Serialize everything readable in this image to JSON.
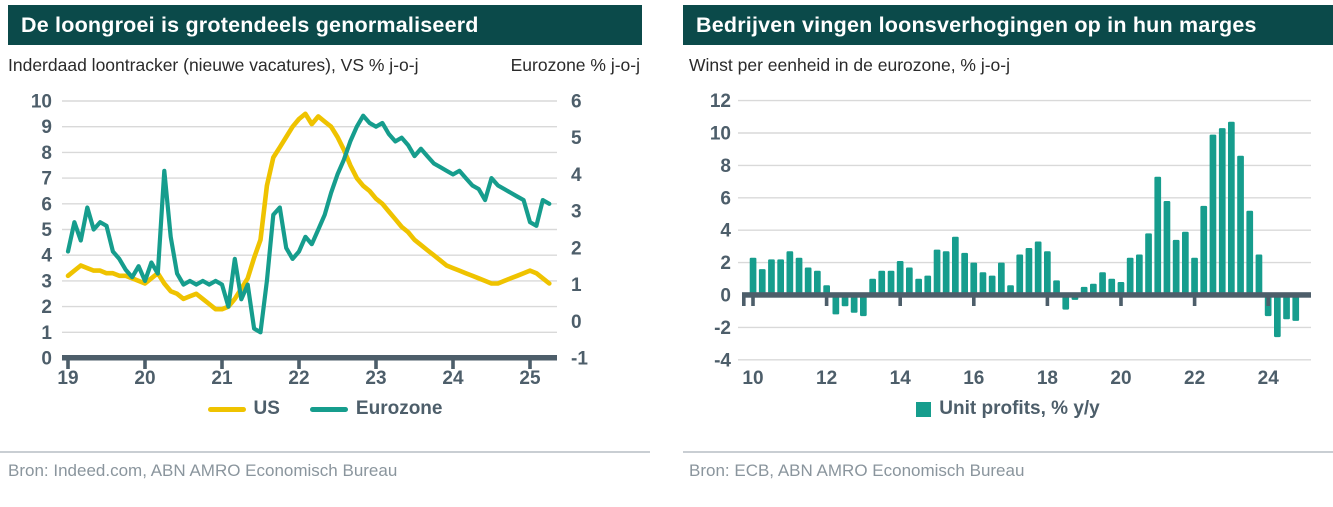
{
  "left": {
    "title": "De loongroei is grotendeels genormaliseerd",
    "subtitle_left": "Inderdaad loontracker (nieuwe vacatures), VS % j-o-j",
    "subtitle_right": "Eurozone  % j-o-j",
    "legend": [
      "US",
      "Eurozone"
    ],
    "source": "Bron: Indeed.com, ABN AMRO Economisch Bureau"
  },
  "right": {
    "title": "Bedrijven vingen loonsverhogingen op in hun marges",
    "subtitle": "Winst per eenheid in de eurozone, % j-o-j",
    "legend": "Unit profits, % y/y",
    "source": "Bron: ECB, ABN AMRO Economisch Bureau"
  },
  "colors": {
    "header_bg": "#0b4a4a",
    "us_line": "#efc300",
    "eurozone": "#169d8d",
    "axis": "#4d5e6a",
    "grid": "#d9d9d9",
    "divider": "#c9ced3",
    "source_text": "#8a959d"
  },
  "chart_data": [
    {
      "type": "line",
      "title": "De loongroei is grotendeels genormaliseerd",
      "subtitle": "Inderdaad loontracker (nieuwe vacatures), VS % j-o-j / Eurozone % j-o-j",
      "x_start_year": 2019,
      "x_interval": "monthly",
      "x_tick_labels": [
        "19",
        "20",
        "21",
        "22",
        "23",
        "24",
        "25"
      ],
      "grid": true,
      "legend_position": "bottom",
      "left_axis": {
        "ylim": [
          0,
          10
        ],
        "ticks": [
          0,
          1,
          2,
          3,
          4,
          5,
          6,
          7,
          8,
          9,
          10
        ]
      },
      "right_axis": {
        "ylim": [
          -1,
          6
        ],
        "ticks": [
          6,
          5,
          4,
          3,
          2,
          1,
          0,
          -1
        ]
      },
      "series": [
        {
          "name": "US",
          "axis": "left",
          "color": "#efc300",
          "values": [
            3.2,
            3.4,
            3.6,
            3.5,
            3.4,
            3.4,
            3.3,
            3.3,
            3.2,
            3.2,
            3.1,
            3.0,
            2.9,
            3.1,
            3.3,
            2.9,
            2.6,
            2.5,
            2.3,
            2.4,
            2.5,
            2.3,
            2.1,
            1.9,
            1.9,
            2.0,
            2.3,
            2.7,
            3.1,
            3.9,
            4.6,
            6.7,
            7.8,
            8.2,
            8.6,
            9.0,
            9.3,
            9.5,
            9.1,
            9.4,
            9.2,
            9.0,
            8.6,
            8.1,
            7.5,
            7.0,
            6.7,
            6.5,
            6.2,
            6.0,
            5.7,
            5.4,
            5.1,
            4.9,
            4.6,
            4.4,
            4.2,
            4.0,
            3.8,
            3.6,
            3.5,
            3.4,
            3.3,
            3.2,
            3.1,
            3.0,
            2.9,
            2.9,
            3.0,
            3.1,
            3.2,
            3.3,
            3.4,
            3.3,
            3.1,
            2.9
          ]
        },
        {
          "name": "Eurozone",
          "axis": "right",
          "color": "#169d8d",
          "values": [
            1.9,
            2.7,
            2.2,
            3.1,
            2.5,
            2.7,
            2.6,
            1.9,
            1.7,
            1.4,
            1.2,
            1.5,
            1.1,
            1.6,
            1.3,
            4.1,
            2.3,
            1.3,
            1.0,
            1.1,
            1.0,
            1.1,
            1.0,
            1.1,
            1.0,
            0.4,
            1.7,
            0.6,
            1.0,
            -0.2,
            -0.3,
            1.1,
            2.9,
            3.1,
            2.0,
            1.7,
            1.9,
            2.3,
            2.1,
            2.5,
            2.9,
            3.5,
            4.0,
            4.4,
            4.9,
            5.3,
            5.6,
            5.4,
            5.3,
            5.4,
            5.1,
            4.9,
            5.0,
            4.8,
            4.5,
            4.7,
            4.5,
            4.3,
            4.2,
            4.1,
            4.0,
            4.1,
            3.9,
            3.7,
            3.6,
            3.3,
            3.9,
            3.7,
            3.6,
            3.5,
            3.4,
            3.3,
            2.7,
            2.6,
            3.3,
            3.2
          ]
        }
      ]
    },
    {
      "type": "bar",
      "title": "Bedrijven vingen loonsverhogingen op in hun marges",
      "subtitle": "Winst per eenheid in de eurozone, % j-o-j",
      "x_start_year": 2010,
      "x_interval": "quarterly",
      "x_tick_labels": [
        "10",
        "12",
        "14",
        "16",
        "18",
        "20",
        "22",
        "24"
      ],
      "grid": true,
      "legend_position": "bottom",
      "ylim": [
        -4,
        12
      ],
      "y_ticks": [
        12,
        10,
        8,
        6,
        4,
        2,
        0,
        -2,
        -4
      ],
      "series": [
        {
          "name": "Unit profits, % y/y",
          "color": "#169d8d",
          "values": [
            2.3,
            1.6,
            2.2,
            2.2,
            2.7,
            2.3,
            1.7,
            1.5,
            0.6,
            -1.2,
            -0.7,
            -1.1,
            -1.3,
            1.0,
            1.5,
            1.5,
            2.1,
            1.7,
            1.0,
            1.2,
            2.8,
            2.7,
            3.6,
            2.6,
            2.0,
            1.4,
            1.2,
            2.0,
            0.6,
            2.5,
            2.9,
            3.3,
            2.7,
            0.9,
            -0.9,
            -0.3,
            0.5,
            0.7,
            1.4,
            1.0,
            0.8,
            2.3,
            2.5,
            3.8,
            7.3,
            5.8,
            3.4,
            3.9,
            2.3,
            5.5,
            9.9,
            10.3,
            10.7,
            8.6,
            5.2,
            2.5,
            -1.3,
            -2.6,
            -1.5,
            -1.6
          ]
        }
      ]
    }
  ]
}
